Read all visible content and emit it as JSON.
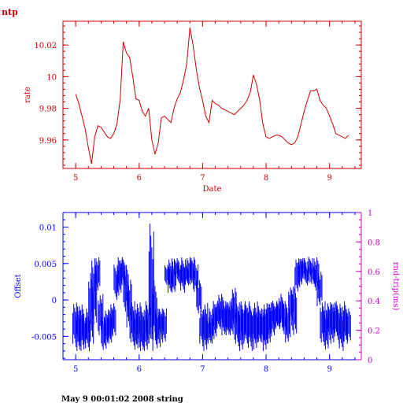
{
  "header": {
    "label": "ntp"
  },
  "footer": {
    "text": "May  9 00:01:02 2008 string"
  },
  "colors": {
    "top": "#cc0000",
    "bottom": "#0000ff",
    "right_axis": "#cc00cc"
  },
  "chart_data": [
    {
      "type": "line",
      "xlabel": "Date",
      "ylabel": "rate",
      "xlim": [
        4.8,
        9.5
      ],
      "ylim": [
        9.942,
        10.035
      ],
      "xticks": [
        5,
        6,
        7,
        8,
        9
      ],
      "yticks": [
        9.96,
        9.98,
        10,
        10.02
      ],
      "ytick_labels": [
        "9.96",
        "9.98",
        "10",
        "10.02"
      ],
      "x": [
        5.0,
        5.05,
        5.1,
        5.15,
        5.2,
        5.25,
        5.3,
        5.35,
        5.4,
        5.45,
        5.5,
        5.55,
        5.6,
        5.65,
        5.7,
        5.75,
        5.8,
        5.85,
        5.9,
        5.95,
        6.0,
        6.05,
        6.1,
        6.15,
        6.2,
        6.25,
        6.3,
        6.35,
        6.4,
        6.45,
        6.5,
        6.55,
        6.6,
        6.65,
        6.7,
        6.75,
        6.8,
        6.85,
        6.9,
        6.95,
        7.0,
        7.05,
        7.1,
        7.15,
        7.2,
        7.25,
        7.3,
        7.35,
        7.4,
        7.45,
        7.5,
        7.55,
        7.6,
        7.65,
        7.7,
        7.75,
        7.8,
        7.85,
        7.9,
        7.95,
        8.0,
        8.05,
        8.1,
        8.15,
        8.2,
        8.25,
        8.3,
        8.35,
        8.4,
        8.45,
        8.5,
        8.55,
        8.6,
        8.65,
        8.7,
        8.75,
        8.8,
        8.85,
        8.9,
        8.95,
        9.0,
        9.05,
        9.1,
        9.15,
        9.2,
        9.25,
        9.3
      ],
      "y": [
        9.989,
        9.983,
        9.975,
        9.967,
        9.955,
        9.945,
        9.962,
        9.969,
        9.968,
        9.965,
        9.962,
        9.961,
        9.964,
        9.97,
        9.985,
        10.022,
        10.015,
        10.012,
        10.0,
        9.986,
        9.985,
        9.978,
        9.975,
        9.98,
        9.96,
        9.951,
        9.958,
        9.974,
        9.975,
        9.973,
        9.971,
        9.98,
        9.986,
        9.99,
        9.998,
        10.008,
        10.031,
        10.02,
        10.005,
        9.993,
        9.985,
        9.975,
        9.971,
        9.985,
        9.983,
        9.982,
        9.98,
        9.979,
        9.978,
        9.977,
        9.976,
        9.978,
        9.98,
        9.982,
        9.985,
        9.99,
        10.001,
        9.995,
        9.985,
        9.97,
        9.962,
        9.961,
        9.962,
        9.963,
        9.963,
        9.962,
        9.96,
        9.958,
        9.957,
        9.958,
        9.962,
        9.97,
        9.978,
        9.985,
        9.991,
        9.991,
        9.992,
        9.985,
        9.982,
        9.98,
        9.975,
        9.97,
        9.964,
        9.963,
        9.962,
        9.961,
        9.963
      ]
    },
    {
      "type": "line",
      "ylabel": "Offset",
      "ylabel_right": "rnd-trip(ms)",
      "xlim": [
        4.8,
        9.5
      ],
      "ylim": [
        -0.0082,
        0.012
      ],
      "ylim_right": [
        0,
        1
      ],
      "xticks": [
        5,
        6,
        7,
        8,
        9
      ],
      "yticks": [
        -0.005,
        0,
        0.005,
        0.01
      ],
      "ytick_labels": [
        "-0.005",
        "0",
        "0.005",
        "0.01"
      ],
      "yticks_right": [
        0,
        0.2,
        0.4,
        0.6,
        0.8,
        1
      ],
      "ytick_labels_right": [
        "0",
        "0.2",
        "0.4",
        "0.6",
        "0.8",
        "1"
      ],
      "series": [
        {
          "x": [
            5.0,
            5.05,
            5.1,
            5.15,
            5.2,
            5.25,
            5.3,
            5.35,
            5.4,
            5.45,
            5.5,
            5.55,
            5.6,
            5.65,
            5.7,
            5.75,
            5.8,
            5.85,
            5.9,
            5.95,
            6.0,
            6.05,
            6.1,
            6.15,
            6.2,
            6.25,
            6.3,
            6.35,
            6.4,
            6.45,
            6.5,
            6.55,
            6.6,
            6.65,
            6.7,
            6.75,
            6.8,
            6.85,
            6.9,
            6.95,
            7.0,
            7.05,
            7.1,
            7.15,
            7.2,
            7.25,
            7.3,
            7.35,
            7.4,
            7.45,
            7.5,
            7.55,
            7.6,
            7.65,
            7.7,
            7.75,
            7.8,
            7.85,
            7.9,
            7.95,
            8.0,
            8.05,
            8.1,
            8.15,
            8.2,
            8.25,
            8.3,
            8.35,
            8.4,
            8.45,
            8.5,
            8.55,
            8.6,
            8.65,
            8.7,
            8.75,
            8.8,
            8.85,
            8.9,
            8.95,
            9.0,
            9.05,
            9.1,
            9.15,
            9.2,
            9.25,
            9.3
          ],
          "low": [
            -0.006,
            -0.007,
            -0.007,
            -0.006,
            -0.007,
            -0.006,
            -0.004,
            0.001,
            -0.005,
            -0.007,
            -0.006,
            -0.006,
            -0.005,
            0.0,
            0.001,
            0.002,
            -0.002,
            -0.004,
            -0.006,
            -0.007,
            -0.006,
            -0.007,
            -0.007,
            -0.006,
            -0.007,
            -0.006,
            -0.007,
            -0.005,
            -0.006,
            0.002,
            0.001,
            0.001,
            0.003,
            0.002,
            0.001,
            0.002,
            0.002,
            0.002,
            0.001,
            -0.002,
            -0.006,
            -0.007,
            -0.006,
            -0.006,
            -0.005,
            -0.004,
            -0.004,
            -0.005,
            -0.005,
            -0.005,
            -0.004,
            -0.006,
            -0.007,
            -0.006,
            -0.006,
            -0.007,
            -0.006,
            -0.007,
            -0.006,
            -0.006,
            -0.007,
            -0.006,
            -0.005,
            -0.004,
            -0.004,
            -0.004,
            -0.005,
            -0.006,
            -0.003,
            -0.005,
            0.001,
            0.002,
            0.003,
            0.002,
            0.003,
            0.002,
            0.001,
            -0.001,
            -0.006,
            -0.007,
            -0.005,
            -0.006,
            -0.005,
            -0.006,
            -0.007,
            -0.006,
            -0.006
          ],
          "high": [
            0.0,
            -0.001,
            0.0,
            -0.002,
            -0.001,
            0.004,
            0.006,
            0.006,
            0.001,
            -0.002,
            -0.001,
            -0.001,
            0.0,
            0.005,
            0.006,
            0.006,
            0.005,
            0.003,
            0.0,
            -0.001,
            0.0,
            -0.001,
            -0.001,
            0.0,
            0.011,
            0.003,
            -0.001,
            -0.001,
            -0.001,
            0.005,
            0.006,
            0.005,
            0.006,
            0.005,
            0.006,
            0.005,
            0.006,
            0.006,
            0.005,
            0.003,
            -0.001,
            0.0,
            -0.002,
            -0.001,
            0.0,
            0.0,
            0.001,
            0.0,
            0.0,
            0.0,
            0.002,
            0.0,
            0.0,
            0.0,
            0.0,
            0.0,
            -0.001,
            0.0,
            -0.001,
            -0.001,
            0.0,
            0.0,
            0.0,
            0.0,
            0.0,
            0.001,
            0.0,
            -0.001,
            0.002,
            0.002,
            0.006,
            0.006,
            0.006,
            0.005,
            0.006,
            0.005,
            0.006,
            0.004,
            0.0,
            -0.001,
            0.0,
            0.0,
            0.0,
            0.0,
            -0.001,
            0.0,
            -0.001
          ]
        }
      ]
    }
  ]
}
